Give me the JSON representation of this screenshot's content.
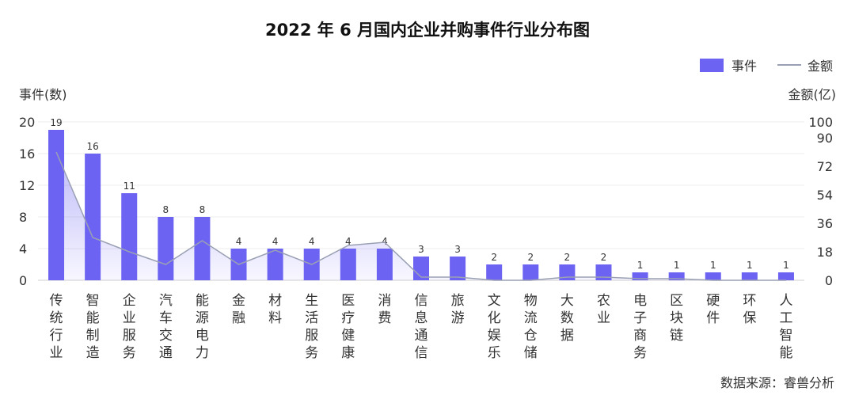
{
  "chart_data": {
    "type": "bar",
    "title": "2022 年 6 月国内企业并购事件行业分布图",
    "categories": [
      "传统行业",
      "智能制造",
      "企业服务",
      "汽车交通",
      "能源电力",
      "金融",
      "材料",
      "生活服务",
      "医疗健康",
      "消费",
      "信息通信",
      "旅游",
      "文化娱乐",
      "物流仓储",
      "大数据",
      "农业",
      "电子商务",
      "区块链",
      "硬件",
      "环保",
      "人工智能"
    ],
    "series": [
      {
        "name": "事件",
        "type": "bar",
        "axis": "left",
        "color": "#6c63f2",
        "values": [
          19,
          16,
          11,
          8,
          8,
          4,
          4,
          4,
          4,
          4,
          3,
          3,
          2,
          2,
          2,
          2,
          1,
          1,
          1,
          1,
          1
        ]
      },
      {
        "name": "金额",
        "type": "area-line",
        "axis": "right",
        "color": "#9aa0b4",
        "values": [
          81,
          27,
          18,
          10,
          25,
          10,
          19,
          10,
          22,
          24,
          2,
          2,
          0,
          0,
          2,
          2,
          1,
          1,
          0,
          0,
          0
        ]
      }
    ],
    "left_axis": {
      "label": "事件(数)",
      "ylim": [
        0,
        20
      ],
      "ticks": [
        "0",
        "4",
        "8",
        "12",
        "16",
        "20"
      ]
    },
    "right_axis": {
      "label": "金额(亿)",
      "ylim": [
        0,
        100
      ],
      "ticks": [
        "0",
        "18",
        "36",
        "54",
        "72",
        "90",
        "100"
      ]
    },
    "grid": true,
    "legend": "top-right"
  },
  "legend": {
    "bar_label": "事件",
    "line_label": "金额"
  },
  "source": "数据来源：睿兽分析"
}
